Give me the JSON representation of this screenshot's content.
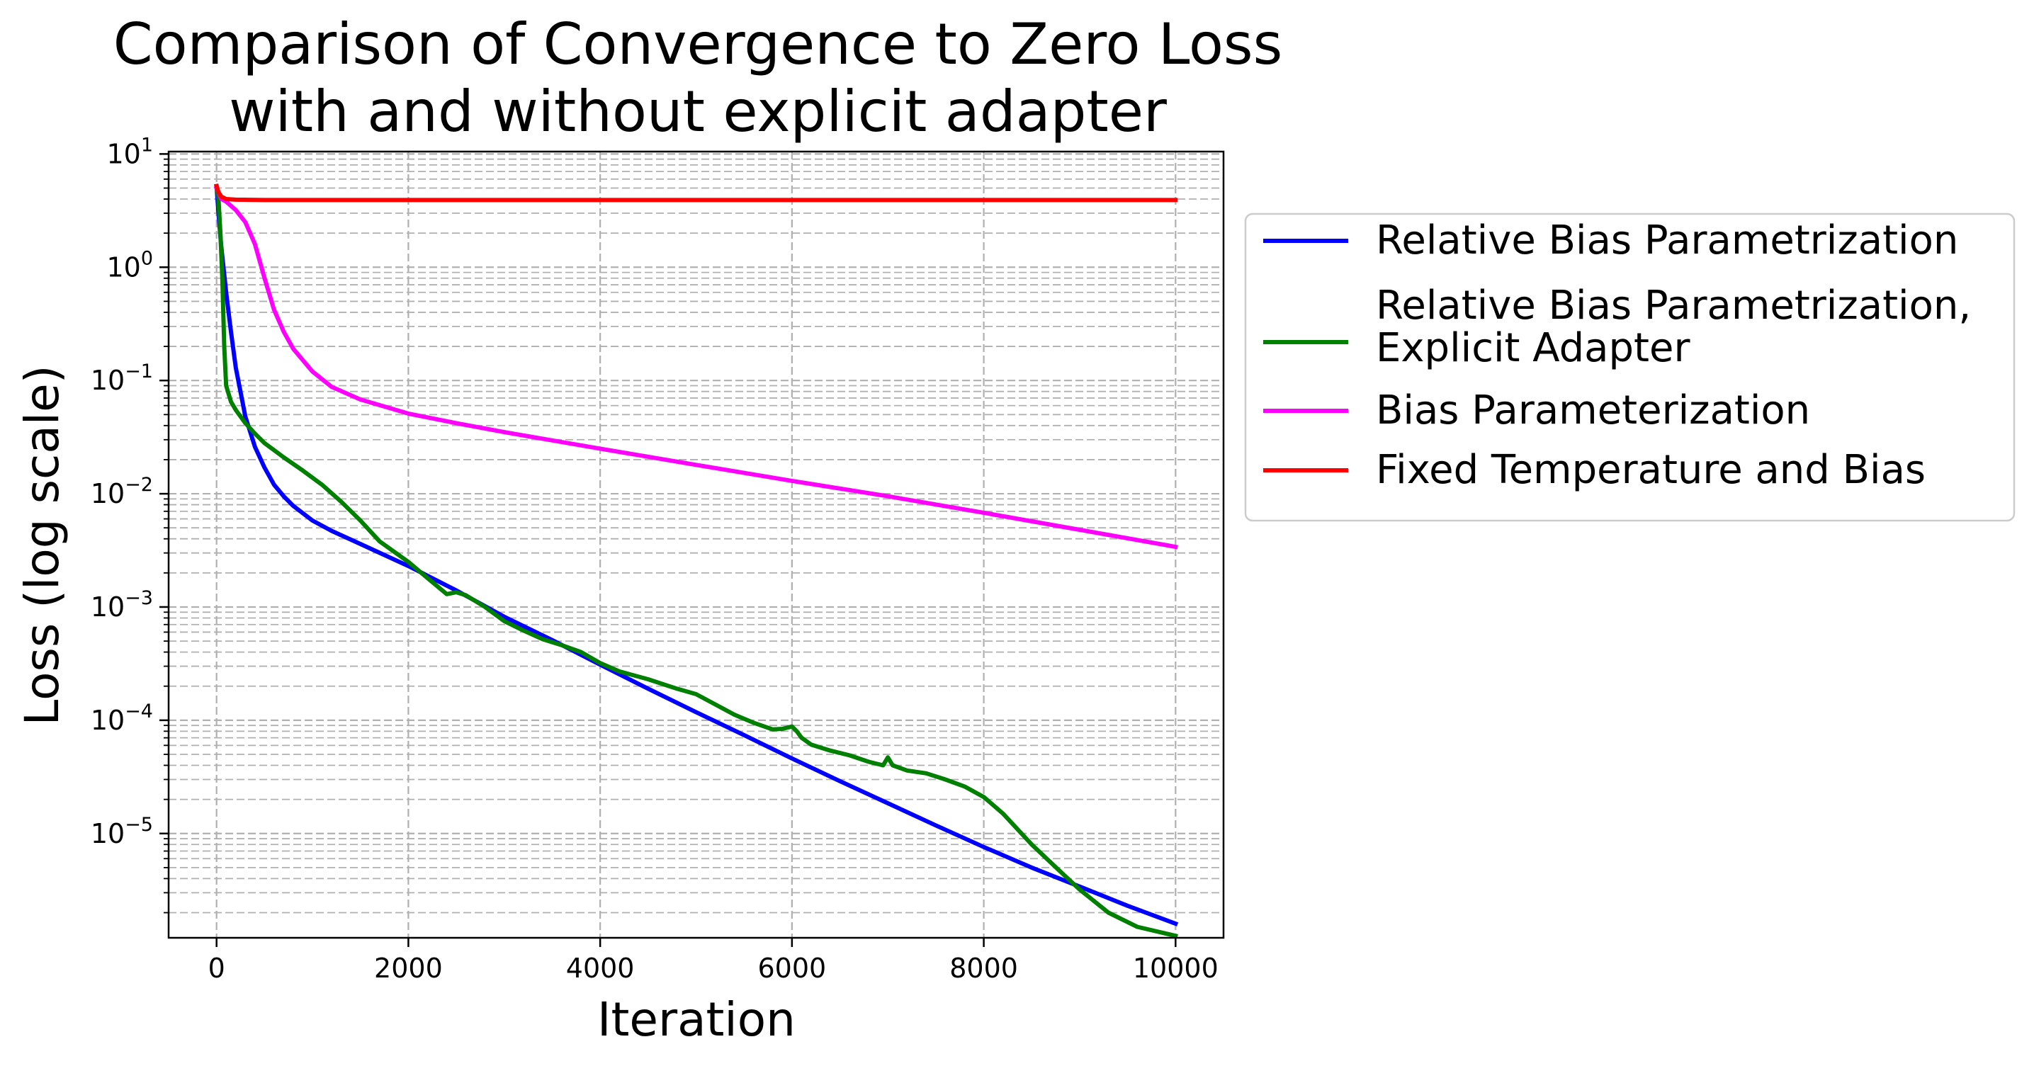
{
  "chart_data": {
    "type": "line",
    "title": [
      "Comparison of Convergence to Zero Loss",
      "with and without explicit adapter"
    ],
    "xlabel": "Iteration",
    "ylabel": "Loss (log scale)",
    "yscale": "log",
    "xlim": [
      -500,
      10500
    ],
    "ylim": [
      1.2e-06,
      10.5
    ],
    "grid": "on (dashed, major and minor)",
    "x_ticks": [
      {
        "value": 0,
        "label": "0"
      },
      {
        "value": 2000,
        "label": "2000"
      },
      {
        "value": 4000,
        "label": "4000"
      },
      {
        "value": 6000,
        "label": "6000"
      },
      {
        "value": 8000,
        "label": "8000"
      },
      {
        "value": 10000,
        "label": "10000"
      }
    ],
    "y_ticks": [
      {
        "value": 10,
        "base": "10",
        "exp": "1"
      },
      {
        "value": 1,
        "base": "10",
        "exp": "0"
      },
      {
        "value": 0.1,
        "base": "10",
        "exp": "−1"
      },
      {
        "value": 0.01,
        "base": "10",
        "exp": "−2"
      },
      {
        "value": 0.001,
        "base": "10",
        "exp": "−3"
      },
      {
        "value": 0.0001,
        "base": "10",
        "exp": "−4"
      },
      {
        "value": 1e-05,
        "base": "10",
        "exp": "−5"
      }
    ],
    "legend_position": "outside right, upper",
    "series": [
      {
        "name": "Relative Bias Parametrization",
        "color": "#0000ff",
        "x": [
          0,
          20,
          50,
          100,
          150,
          200,
          300,
          400,
          500,
          600,
          700,
          800,
          1000,
          1200,
          1500,
          2000,
          2500,
          3000,
          3500,
          4000,
          4500,
          5000,
          5500,
          6000,
          6500,
          7000,
          7500,
          8000,
          8500,
          9000,
          9500,
          10000
        ],
        "y": [
          5.2,
          3.0,
          1.5,
          0.6,
          0.27,
          0.13,
          0.048,
          0.026,
          0.017,
          0.012,
          0.0095,
          0.0078,
          0.0058,
          0.0047,
          0.0036,
          0.0023,
          0.0014,
          0.00082,
          0.00051,
          0.00031,
          0.00019,
          0.000118,
          7.4e-05,
          4.6e-05,
          2.9e-05,
          1.85e-05,
          1.18e-05,
          7.6e-06,
          5e-06,
          3.4e-06,
          2.3e-06,
          1.6e-06
        ]
      },
      {
        "name": "Relative Bias Parametrization,\nExplicit Adapter",
        "color": "#008000",
        "x": [
          0,
          20,
          40,
          60,
          80,
          100,
          150,
          200,
          300,
          400,
          500,
          700,
          900,
          1100,
          1300,
          1500,
          1700,
          2000,
          2200,
          2400,
          2500,
          2600,
          2800,
          3000,
          3200,
          3400,
          3600,
          3800,
          4000,
          4200,
          4500,
          4800,
          5000,
          5200,
          5400,
          5600,
          5800,
          5900,
          6000,
          6050,
          6100,
          6200,
          6400,
          6600,
          6800,
          6950,
          7000,
          7050,
          7200,
          7400,
          7600,
          7800,
          8000,
          8200,
          8500,
          8800,
          9000,
          9300,
          9600,
          10000
        ],
        "y": [
          5.2,
          4.0,
          2.0,
          0.8,
          0.2,
          0.09,
          0.065,
          0.055,
          0.042,
          0.034,
          0.028,
          0.021,
          0.016,
          0.012,
          0.0085,
          0.0058,
          0.0038,
          0.0025,
          0.0018,
          0.0013,
          0.00135,
          0.00127,
          0.001,
          0.00075,
          0.00062,
          0.00052,
          0.00046,
          0.0004,
          0.00032,
          0.00027,
          0.00023,
          0.00019,
          0.00017,
          0.000138,
          0.000112,
          9.5e-05,
          8.3e-05,
          8.4e-05,
          8.8e-05,
          8e-05,
          7e-05,
          6.1e-05,
          5.4e-05,
          4.9e-05,
          4.3e-05,
          4e-05,
          4.7e-05,
          4e-05,
          3.6e-05,
          3.4e-05,
          3e-05,
          2.6e-05,
          2.1e-05,
          1.5e-05,
          8e-06,
          4.6e-06,
          3.2e-06,
          2e-06,
          1.5e-06,
          1.25e-06
        ]
      },
      {
        "name": "Bias Parameterization",
        "color": "#ff00ff",
        "x": [
          0,
          50,
          100,
          200,
          300,
          400,
          500,
          600,
          700,
          800,
          1000,
          1200,
          1500,
          2000,
          2500,
          3000,
          4000,
          5000,
          6000,
          7000,
          8000,
          9000,
          10000
        ],
        "y": [
          5.0,
          4.0,
          3.8,
          3.2,
          2.5,
          1.6,
          0.8,
          0.42,
          0.27,
          0.19,
          0.12,
          0.088,
          0.068,
          0.051,
          0.042,
          0.035,
          0.025,
          0.018,
          0.013,
          0.0095,
          0.0068,
          0.0048,
          0.0034
        ]
      },
      {
        "name": "Fixed Temperature and Bias",
        "color": "#ff0000",
        "x": [
          0,
          20,
          50,
          100,
          200,
          500,
          1000,
          10000
        ],
        "y": [
          5.2,
          4.6,
          4.2,
          4.0,
          3.95,
          3.92,
          3.92,
          3.92
        ]
      }
    ]
  }
}
